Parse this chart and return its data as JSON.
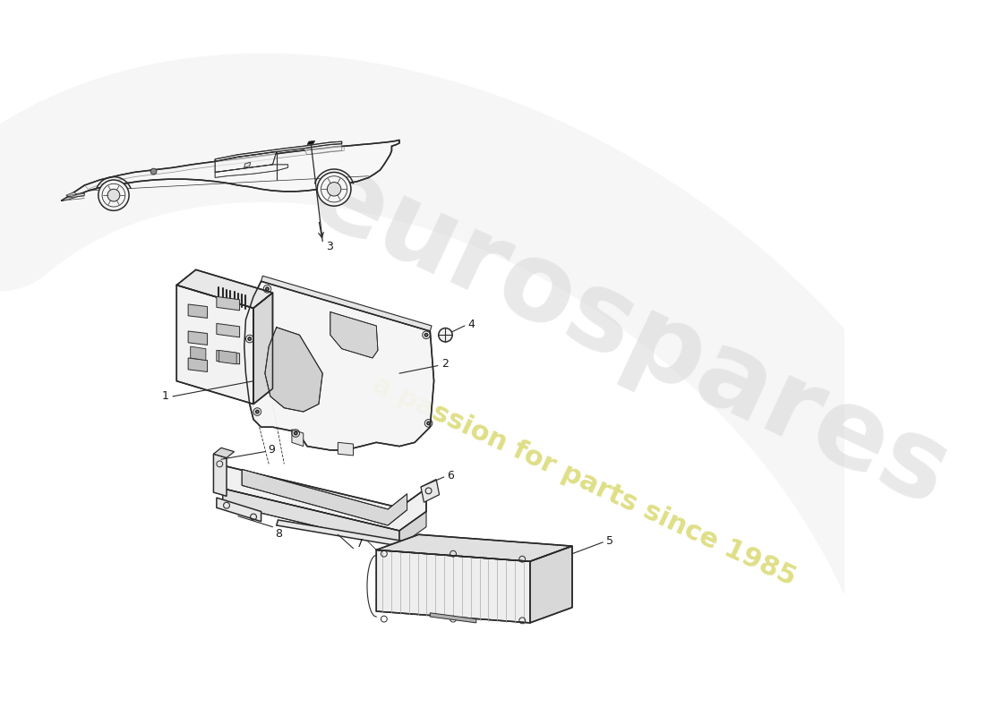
{
  "background_color": "#ffffff",
  "line_color": "#2a2a2a",
  "watermark1": "eurospares",
  "watermark2": "a passion for parts since 1985",
  "wm1_color": "#d8d8d8",
  "wm2_color": "#d4d460",
  "label_color": "#1a1a1a",
  "swash_color": "#e8e8e8"
}
